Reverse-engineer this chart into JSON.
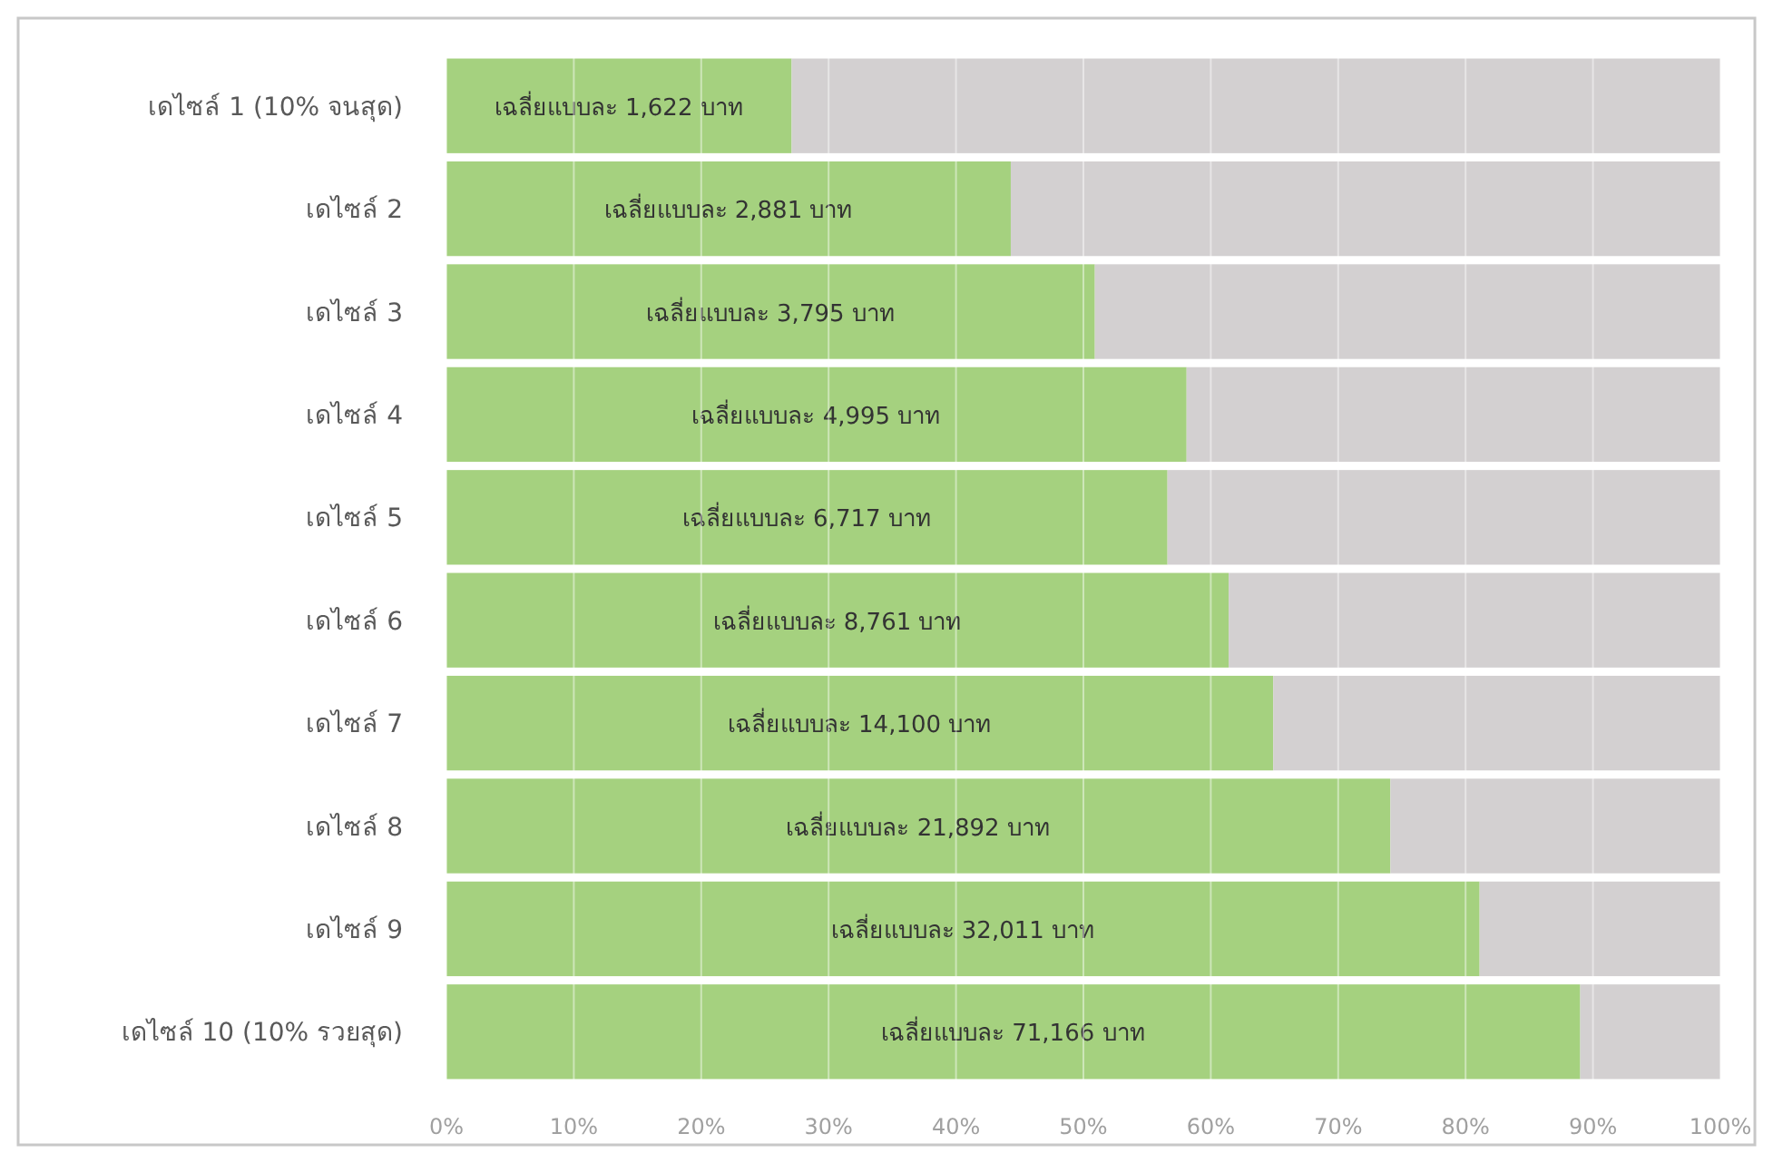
{
  "chart_data": {
    "type": "bar",
    "orientation": "horizontal",
    "stacked": true,
    "grid": "x",
    "categories": [
      "เดไซล์ 1 (10% จนสุด)",
      "เดไซล์ 2",
      "เดไซล์ 3",
      "เดไซล์ 4",
      "เดไซล์ 5",
      "เดไซล์ 6",
      "เดไซล์ 7",
      "เดไซล์ 8",
      "เดไซล์ 9",
      "เดไซล์ 10 (10% รวยสุด)"
    ],
    "series": [
      {
        "color": "#a5d17f",
        "values": [
          27.1,
          44.3,
          50.9,
          58.1,
          56.6,
          61.4,
          64.9,
          74.1,
          81.1,
          89.0
        ],
        "value_labels": [
          "เฉลี่ยแบบละ 1,622 บาท",
          "เฉลี่ยแบบละ 2,881 บาท",
          "เฉลี่ยแบบละ 3,795 บาท",
          "เฉลี่ยแบบละ 4,995 บาท",
          "เฉลี่ยแบบละ 6,717 บาท",
          "เฉลี่ยแบบละ 8,761 บาท",
          "เฉลี่ยแบบละ 14,100 บาท",
          "เฉลี่ยแบบละ 21,892 บาท",
          "เฉลี่ยแบบละ 32,011 บาท",
          "เฉลี่ยแบบละ 71,166 บาท"
        ]
      },
      {
        "color": "#d3d0d1",
        "values": [
          72.9,
          55.7,
          49.1,
          41.9,
          43.4,
          38.6,
          35.1,
          25.9,
          18.9,
          11.0
        ]
      }
    ],
    "xlim": [
      0,
      100
    ],
    "xticks": [
      {
        "value": 0,
        "label": "0%"
      },
      {
        "value": 10,
        "label": "10%"
      },
      {
        "value": 20,
        "label": "20%"
      },
      {
        "value": 30,
        "label": "30%"
      },
      {
        "value": 40,
        "label": "40%"
      },
      {
        "value": 50,
        "label": "50%"
      },
      {
        "value": 60,
        "label": "60%"
      },
      {
        "value": 70,
        "label": "70%"
      },
      {
        "value": 80,
        "label": "80%"
      },
      {
        "value": 90,
        "label": "90%"
      },
      {
        "value": 100,
        "label": "100%"
      }
    ]
  }
}
